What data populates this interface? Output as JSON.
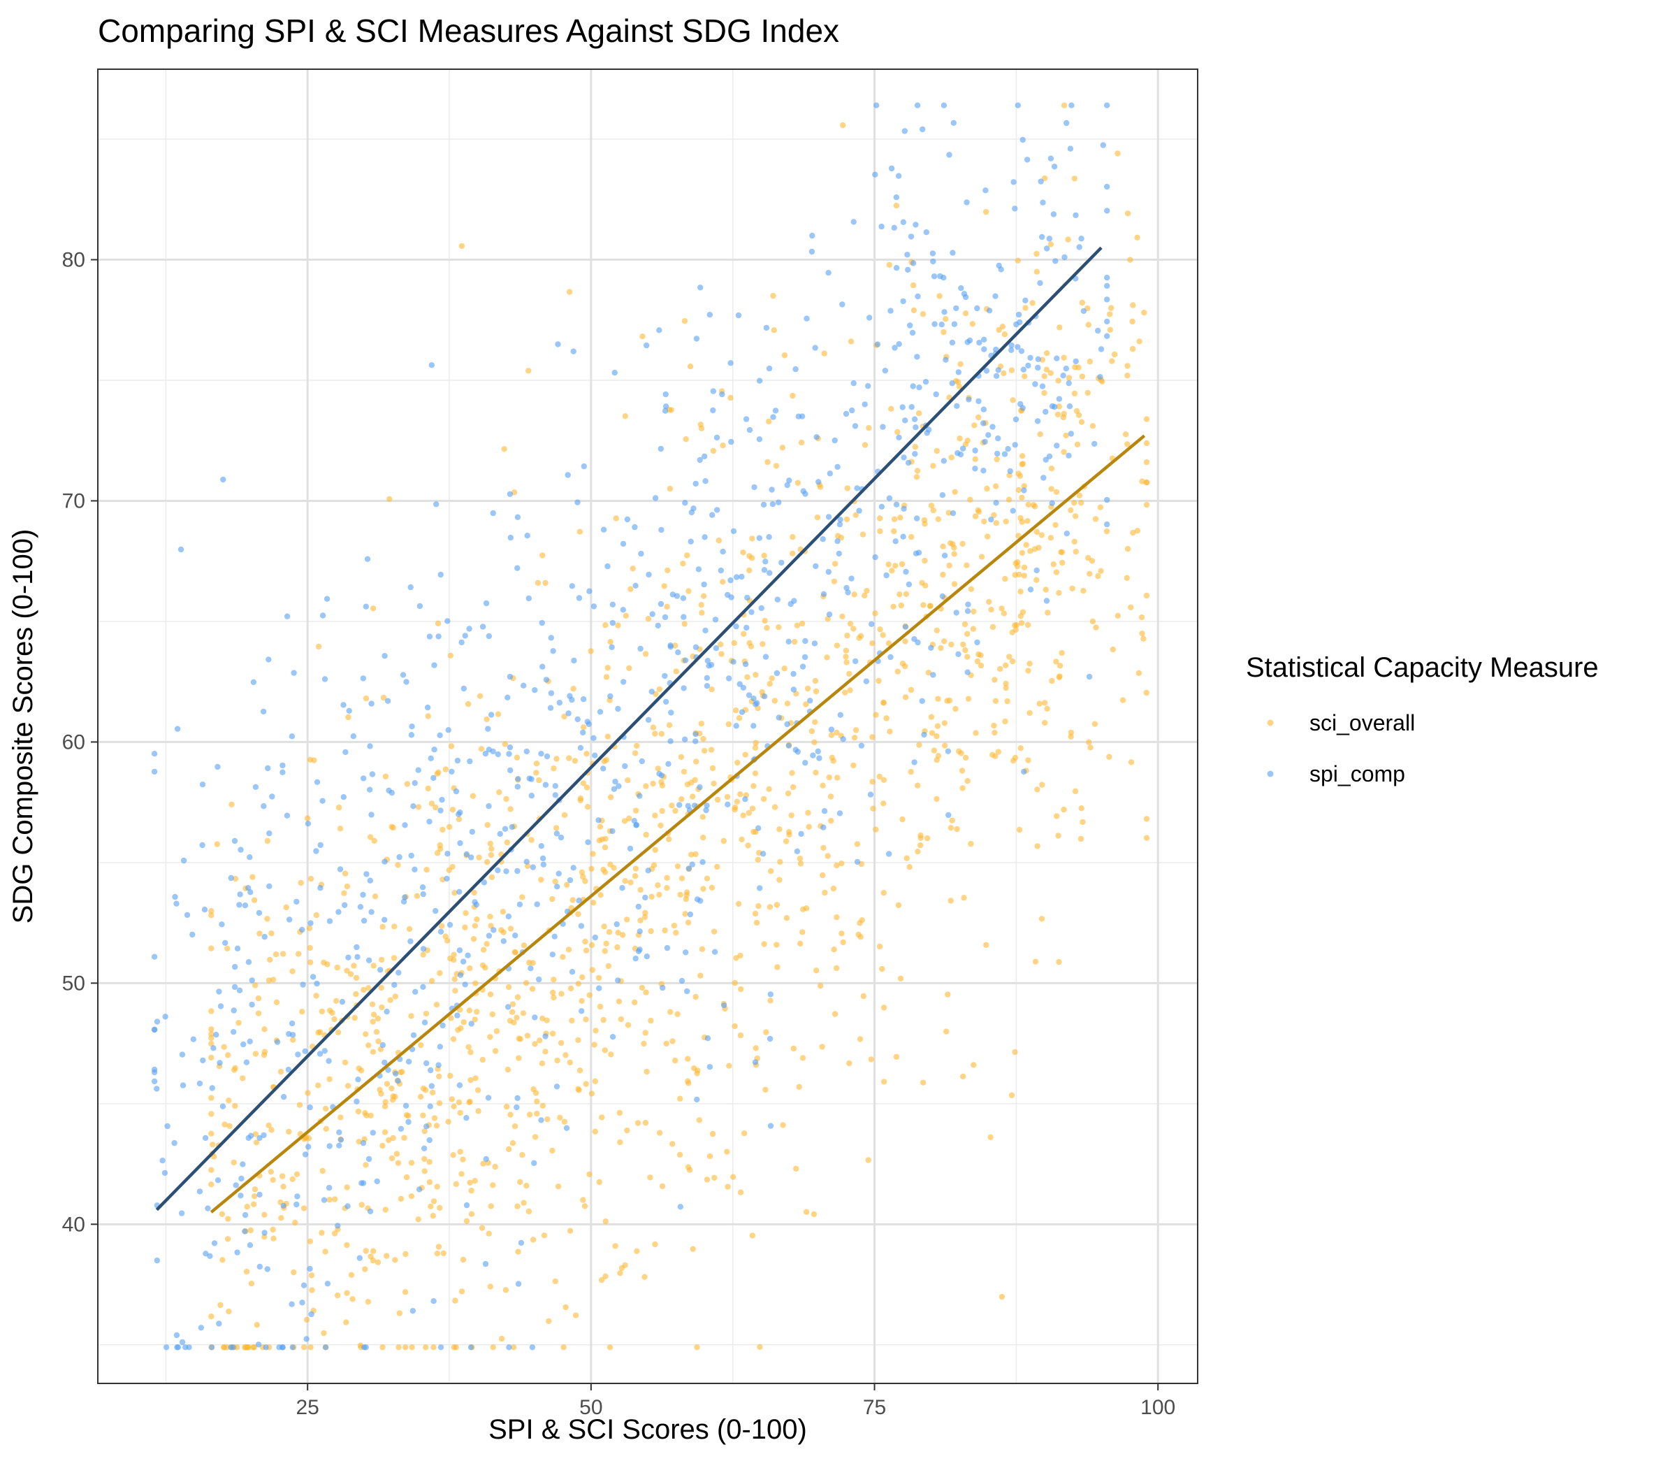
{
  "chart_data": {
    "type": "scatter",
    "title": "Comparing SPI & SCI Measures Against SDG Index",
    "xlabel": "SPI & SCI Scores (0-100)",
    "ylabel": "SDG Composite Scores (0-100)",
    "xlim": [
      6.5,
      103.5
    ],
    "ylim": [
      33.4,
      87.9
    ],
    "x_ticks": [
      25,
      50,
      75,
      100
    ],
    "y_ticks": [
      40,
      50,
      60,
      70,
      80
    ],
    "grid": true,
    "legend": {
      "title": "Statistical Capacity Measure",
      "position": "right"
    },
    "series": [
      {
        "name": "sci_overall",
        "color": "#FFB732",
        "point_opacity": 0.6,
        "trend_color": "#B8860B",
        "trend": [
          [
            16.5,
            40.5
          ],
          [
            98.8,
            72.7
          ]
        ],
        "generator": {
          "seed": 11,
          "n": 1500,
          "x_range": [
            16.5,
            99
          ],
          "centers": [
            [
              75,
              62,
              12,
              8
            ],
            [
              60,
              55,
              12,
              9
            ],
            [
              45,
              50,
              10,
              7
            ],
            [
              88,
              68,
              7,
              6
            ],
            [
              30,
              45,
              10,
              6
            ]
          ],
          "residual_sd": 6.5
        }
      },
      {
        "name": "spi_comp",
        "color": "#56A0F5",
        "point_opacity": 0.6,
        "trend_color": "#2C4F76",
        "trend": [
          [
            11.7,
            40.6
          ],
          [
            95.0,
            80.5
          ]
        ],
        "generator": {
          "seed": 7,
          "n": 950,
          "x_range": [
            11.5,
            95.5
          ],
          "centers": [
            [
              85,
              77,
              6,
              4
            ],
            [
              70,
              68,
              10,
              6
            ],
            [
              55,
              60,
              10,
              7
            ],
            [
              38,
              55,
              9,
              8
            ],
            [
              22,
              48,
              8,
              9
            ]
          ],
          "residual_sd": 5.5
        }
      }
    ]
  }
}
